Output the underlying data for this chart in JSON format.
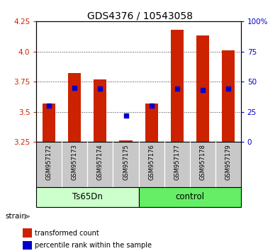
{
  "title": "GDS4376 / 10543058",
  "samples": [
    "GSM957172",
    "GSM957173",
    "GSM957174",
    "GSM957175",
    "GSM957176",
    "GSM957177",
    "GSM957178",
    "GSM957179"
  ],
  "transformed_counts": [
    3.57,
    3.82,
    3.77,
    3.26,
    3.57,
    4.18,
    4.13,
    4.01
  ],
  "percentile_ranks": [
    30,
    45,
    44,
    22,
    30,
    44,
    43,
    44
  ],
  "bar_bottom": 3.25,
  "ylim_left": [
    3.25,
    4.25
  ],
  "ylim_right": [
    0,
    100
  ],
  "yticks_left": [
    3.25,
    3.5,
    3.75,
    4.0,
    4.25
  ],
  "yticks_right": [
    0,
    25,
    50,
    75,
    100
  ],
  "groups": [
    {
      "name": "Ts65Dn",
      "indices": [
        0,
        1,
        2,
        3
      ],
      "color": "#ccffcc"
    },
    {
      "name": "control",
      "indices": [
        4,
        5,
        6,
        7
      ],
      "color": "#66ee66"
    }
  ],
  "bar_color": "#cc2200",
  "marker_color": "#0000cc",
  "tick_label_color_left": "#cc2200",
  "tick_label_color_right": "#0000cc",
  "grid_color": "#000000",
  "background_color": "#ffffff",
  "plot_bg_color": "#ffffff",
  "xticklabel_bg": "#c8c8c8",
  "title_fontsize": 10,
  "bar_width": 0.5
}
